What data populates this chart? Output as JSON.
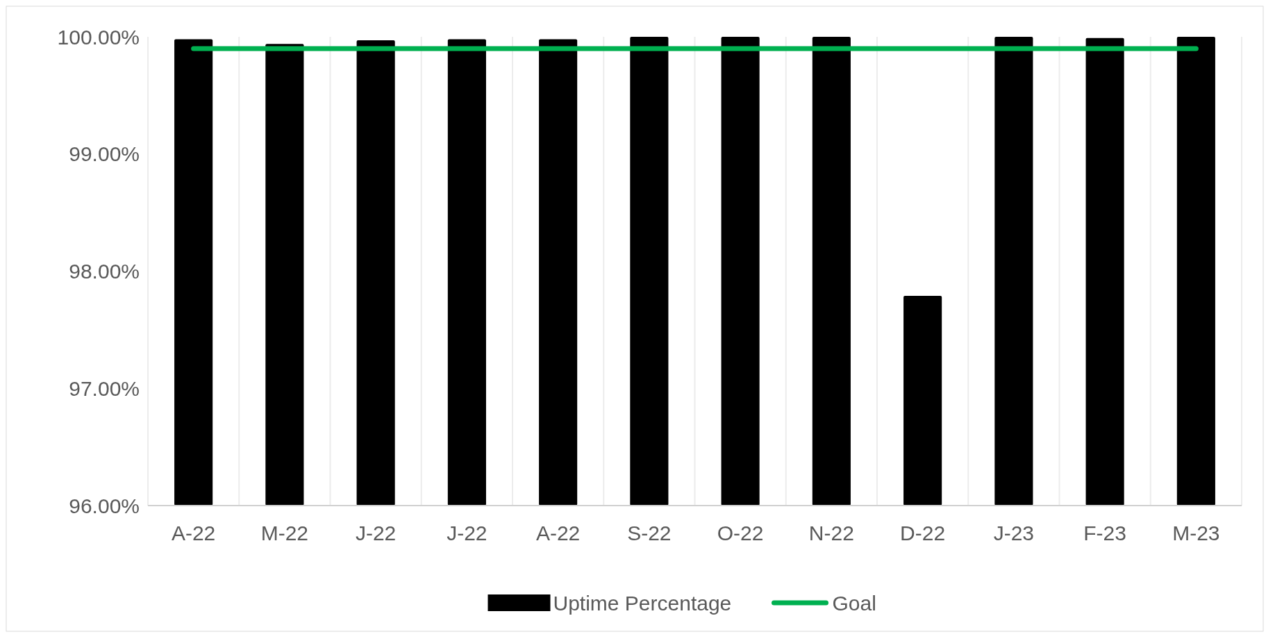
{
  "chart_data": {
    "type": "bar",
    "categories": [
      "A-22",
      "M-22",
      "J-22",
      "J-22",
      "A-22",
      "S-22",
      "O-22",
      "N-22",
      "D-22",
      "J-23",
      "F-23",
      "M-23"
    ],
    "series": [
      {
        "name": "Uptime Percentage",
        "color": "#000000",
        "values": [
          99.98,
          99.94,
          99.97,
          99.98,
          99.98,
          100,
          100,
          100,
          97.79,
          100,
          99.99,
          100
        ]
      },
      {
        "name": "Goal",
        "type": "line",
        "color": "#00b050",
        "values": [
          99.9,
          99.9,
          99.9,
          99.9,
          99.9,
          99.9,
          99.9,
          99.9,
          99.9,
          99.9,
          99.9,
          99.9
        ]
      }
    ],
    "ylim": [
      96,
      100
    ],
    "yticks": [
      {
        "value": 96,
        "label": "96.00%"
      },
      {
        "value": 97,
        "label": "97.00%"
      },
      {
        "value": 98,
        "label": "98.00%"
      },
      {
        "value": 99,
        "label": "99.00%"
      },
      {
        "value": 100,
        "label": "100.00%"
      }
    ],
    "grid": "x",
    "legend": "bottom"
  }
}
